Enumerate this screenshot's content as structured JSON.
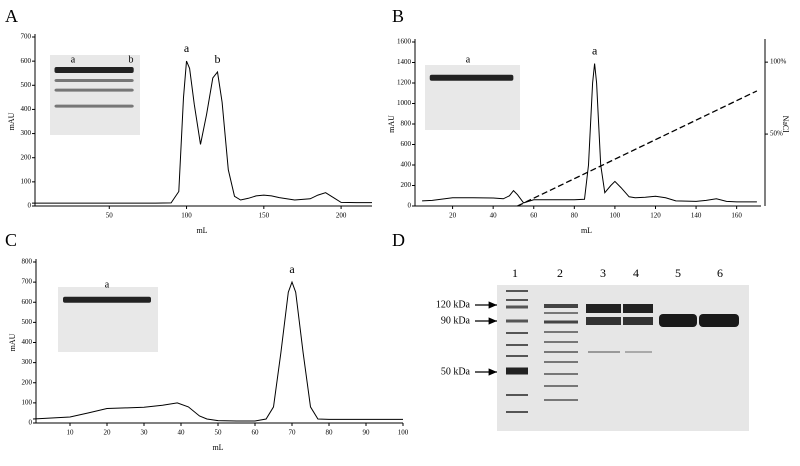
{
  "chart_data": [
    {
      "type": "line",
      "panel": "A",
      "y_label": "mAU",
      "x_label": "mL",
      "xlim": [
        0,
        220
      ],
      "ylim": [
        0,
        700
      ],
      "xticks": [
        50,
        100,
        150,
        200
      ],
      "yticks": [
        0,
        100,
        200,
        300,
        400,
        500,
        600,
        700
      ],
      "series": [
        {
          "color": "#000000",
          "x": [
            0,
            20,
            40,
            60,
            80,
            90,
            95,
            98,
            100,
            102,
            105,
            109,
            113,
            117,
            120,
            123,
            127,
            131,
            135,
            140,
            145,
            150,
            155,
            160,
            170,
            180,
            185,
            190,
            195,
            200,
            210,
            220
          ],
          "values": [
            12,
            12,
            12,
            12,
            12,
            13,
            60,
            450,
            600,
            570,
            420,
            255,
            380,
            530,
            555,
            430,
            150,
            40,
            25,
            32,
            42,
            45,
            42,
            35,
            25,
            30,
            45,
            55,
            35,
            15,
            14,
            14
          ]
        }
      ],
      "annotations": [
        {
          "text": "a",
          "x": 100
        },
        {
          "text": "b",
          "x": 120
        }
      ],
      "inset_labels": [
        "a",
        "b"
      ]
    },
    {
      "type": "line",
      "panel": "B",
      "y_label": "mAU",
      "x_label": "mL",
      "y2_label": "NaCl",
      "xlim": [
        0,
        172
      ],
      "ylim": [
        0,
        1600
      ],
      "y2lim": [
        0,
        114
      ],
      "xticks": [
        20,
        40,
        60,
        80,
        100,
        120,
        140,
        160
      ],
      "yticks": [
        0,
        200,
        400,
        600,
        800,
        1000,
        1200,
        1400,
        1600
      ],
      "y2ticks": [
        {
          "value": 50,
          "label": "50%"
        },
        {
          "value": 100,
          "label": "100%"
        }
      ],
      "series": [
        {
          "color": "#000000",
          "x": [
            5,
            10,
            20,
            30,
            40,
            45,
            48,
            50,
            52,
            55,
            60,
            70,
            80,
            85,
            87,
            89,
            90,
            91,
            93,
            95,
            98,
            100,
            103,
            107,
            110,
            115,
            120,
            125,
            130,
            140,
            145,
            150,
            155,
            160,
            170
          ],
          "values": [
            50,
            55,
            80,
            80,
            78,
            70,
            100,
            150,
            110,
            30,
            60,
            60,
            60,
            65,
            400,
            1200,
            1390,
            1200,
            400,
            130,
            200,
            240,
            180,
            90,
            80,
            85,
            95,
            80,
            50,
            45,
            55,
            70,
            45,
            40,
            40
          ]
        },
        {
          "color": "#000000",
          "dashed": true,
          "axis": "y2",
          "x": [
            52,
            170
          ],
          "values": [
            0,
            80
          ]
        }
      ],
      "annotations": [
        {
          "text": "a",
          "x": 90
        }
      ],
      "inset_labels": [
        "a"
      ]
    },
    {
      "type": "line",
      "panel": "C",
      "y_label": "mAU",
      "x_label": "mL",
      "xlim": [
        0,
        100
      ],
      "ylim": [
        0,
        800
      ],
      "xticks": [
        10,
        20,
        30,
        40,
        50,
        60,
        70,
        80,
        90,
        100
      ],
      "yticks": [
        0,
        100,
        200,
        300,
        400,
        500,
        600,
        700,
        800
      ],
      "series": [
        {
          "color": "#000000",
          "x": [
            0,
            10,
            15,
            20,
            25,
            30,
            35,
            39,
            42,
            45,
            47,
            50,
            55,
            60,
            63,
            65,
            67,
            69,
            70,
            71,
            73,
            75,
            77,
            80,
            90,
            100
          ],
          "values": [
            20,
            30,
            50,
            72,
            75,
            78,
            88,
            100,
            80,
            35,
            20,
            12,
            10,
            10,
            20,
            80,
            350,
            650,
            700,
            650,
            350,
            80,
            20,
            18,
            18,
            18
          ]
        }
      ],
      "annotations": [
        {
          "text": "a",
          "x": 70
        }
      ],
      "inset_labels": [
        "a"
      ]
    }
  ],
  "gel": {
    "panel": "D",
    "lanes": [
      "1",
      "2",
      "3",
      "4",
      "5",
      "6"
    ],
    "markers": [
      {
        "label": "120 kDa"
      },
      {
        "label": "90 kDa"
      },
      {
        "label": "50 kDa"
      }
    ]
  }
}
